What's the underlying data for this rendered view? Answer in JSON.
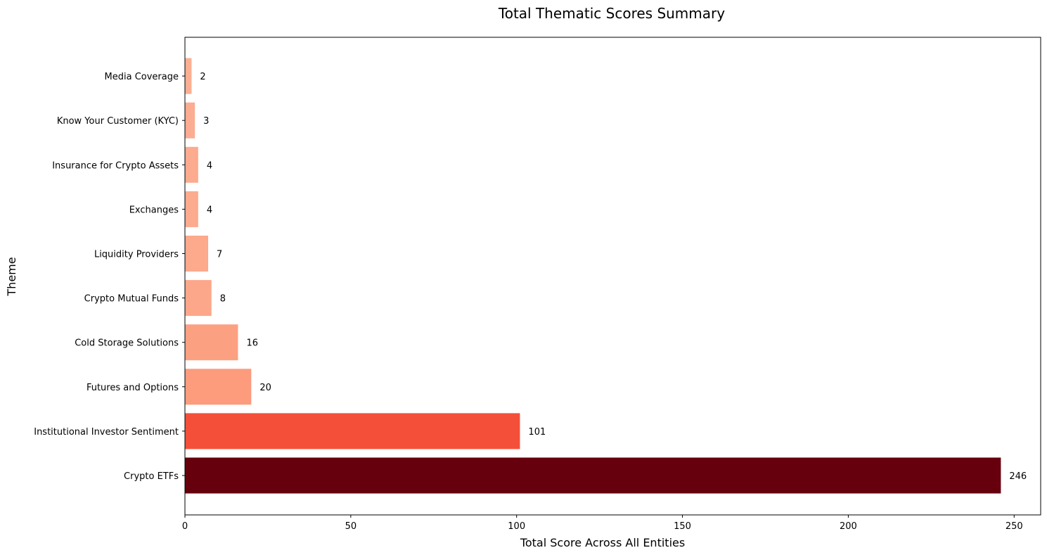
{
  "chart_data": {
    "type": "bar",
    "orientation": "horizontal",
    "title": "Total Thematic Scores Summary",
    "xlabel": "Total Score Across All Entities",
    "ylabel": "Theme",
    "xlim": [
      0,
      258
    ],
    "xticks": [
      0,
      50,
      100,
      150,
      200,
      250
    ],
    "grid": false,
    "categories": [
      "Crypto ETFs",
      "Institutional Investor Sentiment",
      "Futures and Options",
      "Cold Storage Solutions",
      "Crypto Mutual Funds",
      "Liquidity Providers",
      "Exchanges",
      "Insurance for Crypto Assets",
      "Know Your Customer (KYC)",
      "Media Coverage"
    ],
    "values": [
      246,
      101,
      20,
      16,
      8,
      7,
      4,
      4,
      3,
      2
    ],
    "colors": [
      "#67000d",
      "#f44f39",
      "#fc9c7d",
      "#fca082",
      "#fca78a",
      "#fca98c",
      "#fcab8f",
      "#fcab8f",
      "#fcac91",
      "#fcae92"
    ]
  }
}
